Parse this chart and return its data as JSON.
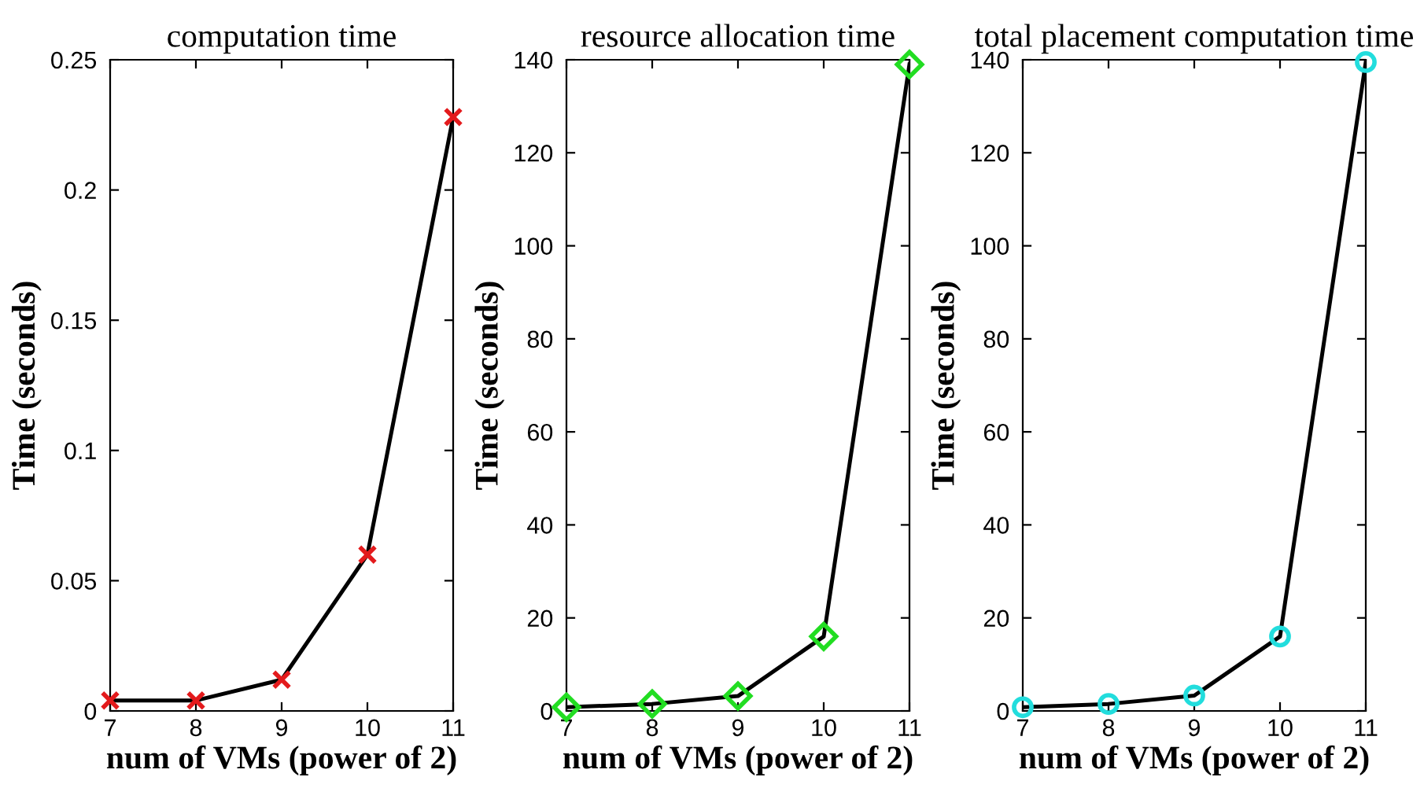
{
  "chart_data": [
    {
      "type": "line",
      "title": "computation time",
      "xlabel": "num of VMs (power of 2)",
      "ylabel": "Time (seconds)",
      "x": [
        7,
        8,
        9,
        10,
        11
      ],
      "xlim": [
        7,
        11
      ],
      "xticks": [
        7,
        8,
        9,
        10,
        11
      ],
      "ylim": [
        0,
        0.25
      ],
      "yticks": [
        0,
        0.05,
        0.1,
        0.15,
        0.2,
        0.25
      ],
      "marker": "cross",
      "grid": false,
      "series": [
        {
          "color": "#000000",
          "colors": [
            "#e31a1c",
            "#e31a1c",
            "#e31a1c",
            "#e31a1c",
            "#e31a1c"
          ],
          "values": [
            0.004,
            0.004,
            0.012,
            0.06,
            0.228
          ]
        }
      ]
    },
    {
      "type": "line",
      "title": "resource allocation time",
      "xlabel": "num of VMs (power of 2)",
      "ylabel": "Time (seconds)",
      "x": [
        7,
        8,
        9,
        10,
        11
      ],
      "xlim": [
        7,
        11
      ],
      "xticks": [
        7,
        8,
        9,
        10,
        11
      ],
      "ylim": [
        0,
        140
      ],
      "yticks": [
        0,
        20,
        40,
        60,
        80,
        100,
        120,
        140
      ],
      "marker": "diamond",
      "grid": false,
      "series": [
        {
          "color": "#000000",
          "colors": [
            "#22dd22",
            "#22dd22",
            "#22dd22",
            "#22dd22",
            "#22dd22"
          ],
          "values": [
            0.8,
            1.5,
            3.2,
            16,
            139
          ]
        }
      ]
    },
    {
      "type": "line",
      "title": "total placement computation time",
      "xlabel": "num of VMs (power of 2)",
      "ylabel": "Time (seconds)",
      "x": [
        7,
        8,
        9,
        10,
        11
      ],
      "xlim": [
        7,
        11
      ],
      "xticks": [
        7,
        8,
        9,
        10,
        11
      ],
      "ylim": [
        0,
        140
      ],
      "yticks": [
        0,
        20,
        40,
        60,
        80,
        100,
        120,
        140
      ],
      "marker": "circle",
      "grid": false,
      "series": [
        {
          "color": "#000000",
          "colors": [
            "#22dddd",
            "#22dddd",
            "#22dddd",
            "#22dddd",
            "#22dddd"
          ],
          "values": [
            0.8,
            1.5,
            3.3,
            16,
            139.5
          ]
        }
      ]
    }
  ]
}
